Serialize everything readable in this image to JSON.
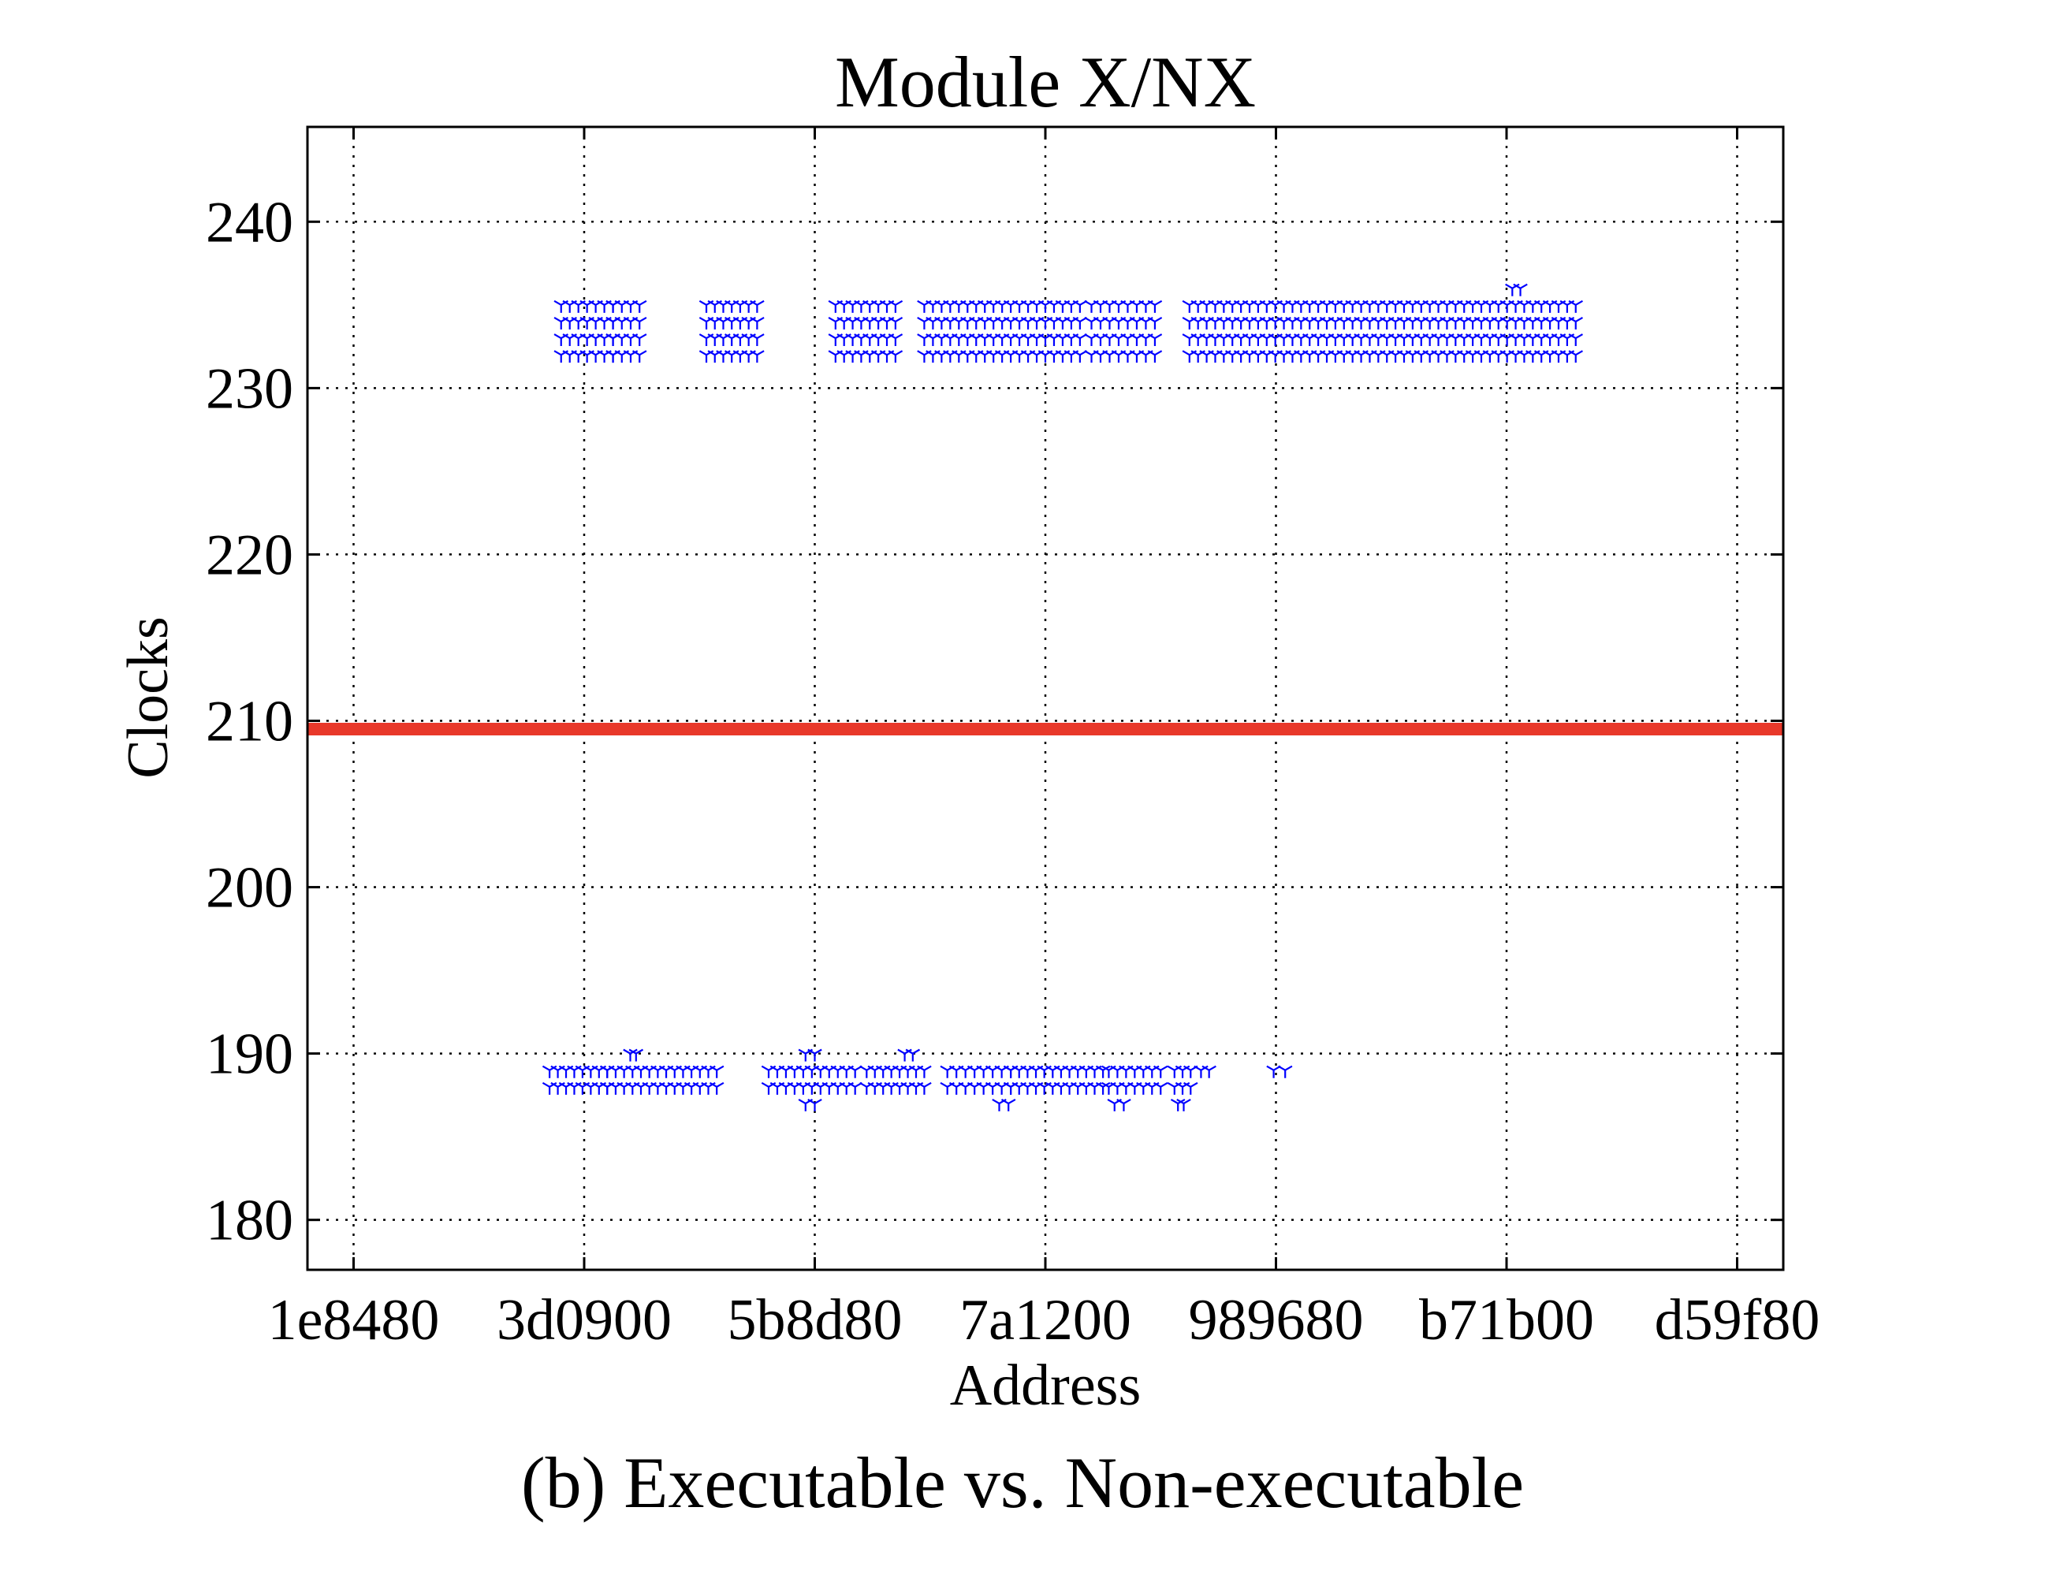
{
  "chart_data": {
    "type": "scatter",
    "title": "Module X/NX",
    "xlabel": "Address",
    "ylabel": "Clocks",
    "caption": "(b) Executable vs. Non-executable",
    "x_tick_labels": [
      "1e8480",
      "3d0900",
      "5b8d80",
      "7a1200",
      "989680",
      "b71b00",
      "d59f80"
    ],
    "x_ticks": [
      2000000,
      4000000,
      6000000,
      8000000,
      10000000,
      12000000,
      14000000
    ],
    "xlim": [
      1600000,
      14400000
    ],
    "y_ticks": [
      180,
      190,
      200,
      210,
      220,
      230,
      240
    ],
    "ylim": [
      177,
      245.7
    ],
    "grid": true,
    "threshold": {
      "y": 209.5,
      "color": "#e8382a"
    },
    "marker_color": "#0000ff",
    "marker": "tri_down",
    "series": [
      {
        "clusters": [
          {
            "x_range": [
              3800000,
              4250000
            ],
            "y_values": [
              232,
              233,
              234,
              235
            ]
          },
          {
            "x_range": [
              4250000,
              4480000
            ],
            "y_values": [
              232,
              233,
              234,
              235
            ]
          },
          {
            "x_range": [
              5060000,
              5500000
            ],
            "y_values": [
              232,
              233,
              234,
              235
            ]
          },
          {
            "x_range": [
              6180000,
              6700000
            ],
            "y_values": [
              232,
              233,
              234,
              235
            ]
          },
          {
            "x_range": [
              6950000,
              8300000
            ],
            "y_values": [
              232,
              233,
              234,
              235
            ]
          },
          {
            "x_range": [
              8400000,
              8950000
            ],
            "y_values": [
              232,
              233,
              234,
              235
            ]
          },
          {
            "x_range": [
              9250000,
              12600000
            ],
            "y_values": [
              232,
              233,
              234,
              235
            ]
          },
          {
            "x_range": [
              12050000,
              12120000
            ],
            "y_values": [
              236
            ]
          },
          {
            "x_range": [
              3700000,
              4200000
            ],
            "y_values": [
              188,
              189
            ]
          },
          {
            "x_range": [
              4200000,
              5150000
            ],
            "y_values": [
              188,
              189
            ]
          },
          {
            "x_range": [
              4400000,
              4450000
            ],
            "y_values": [
              190
            ]
          },
          {
            "x_range": [
              5600000,
              6350000
            ],
            "y_values": [
              188,
              189
            ]
          },
          {
            "x_range": [
              5920000,
              6000000
            ],
            "y_values": [
              190,
              187
            ]
          },
          {
            "x_range": [
              6450000,
              6950000
            ],
            "y_values": [
              188,
              189
            ]
          },
          {
            "x_range": [
              6780000,
              6850000
            ],
            "y_values": [
              190
            ]
          },
          {
            "x_range": [
              7150000,
              7700000
            ],
            "y_values": [
              188,
              189
            ]
          },
          {
            "x_range": [
              7700000,
              8500000
            ],
            "y_values": [
              188,
              189
            ]
          },
          {
            "x_range": [
              7600000,
              7680000
            ],
            "y_values": [
              187
            ]
          },
          {
            "x_range": [
              8550000,
              9000000
            ],
            "y_values": [
              188,
              189
            ]
          },
          {
            "x_range": [
              8600000,
              8680000
            ],
            "y_values": [
              187
            ]
          },
          {
            "x_range": [
              9120000,
              9260000
            ],
            "y_values": [
              188,
              189
            ]
          },
          {
            "x_range": [
              9150000,
              9200000
            ],
            "y_values": [
              187
            ]
          },
          {
            "x_range": [
              9350000,
              9420000
            ],
            "y_values": [
              189
            ]
          },
          {
            "x_range": [
              9980000,
              10080000
            ],
            "y_values": [
              189
            ]
          }
        ]
      }
    ]
  }
}
